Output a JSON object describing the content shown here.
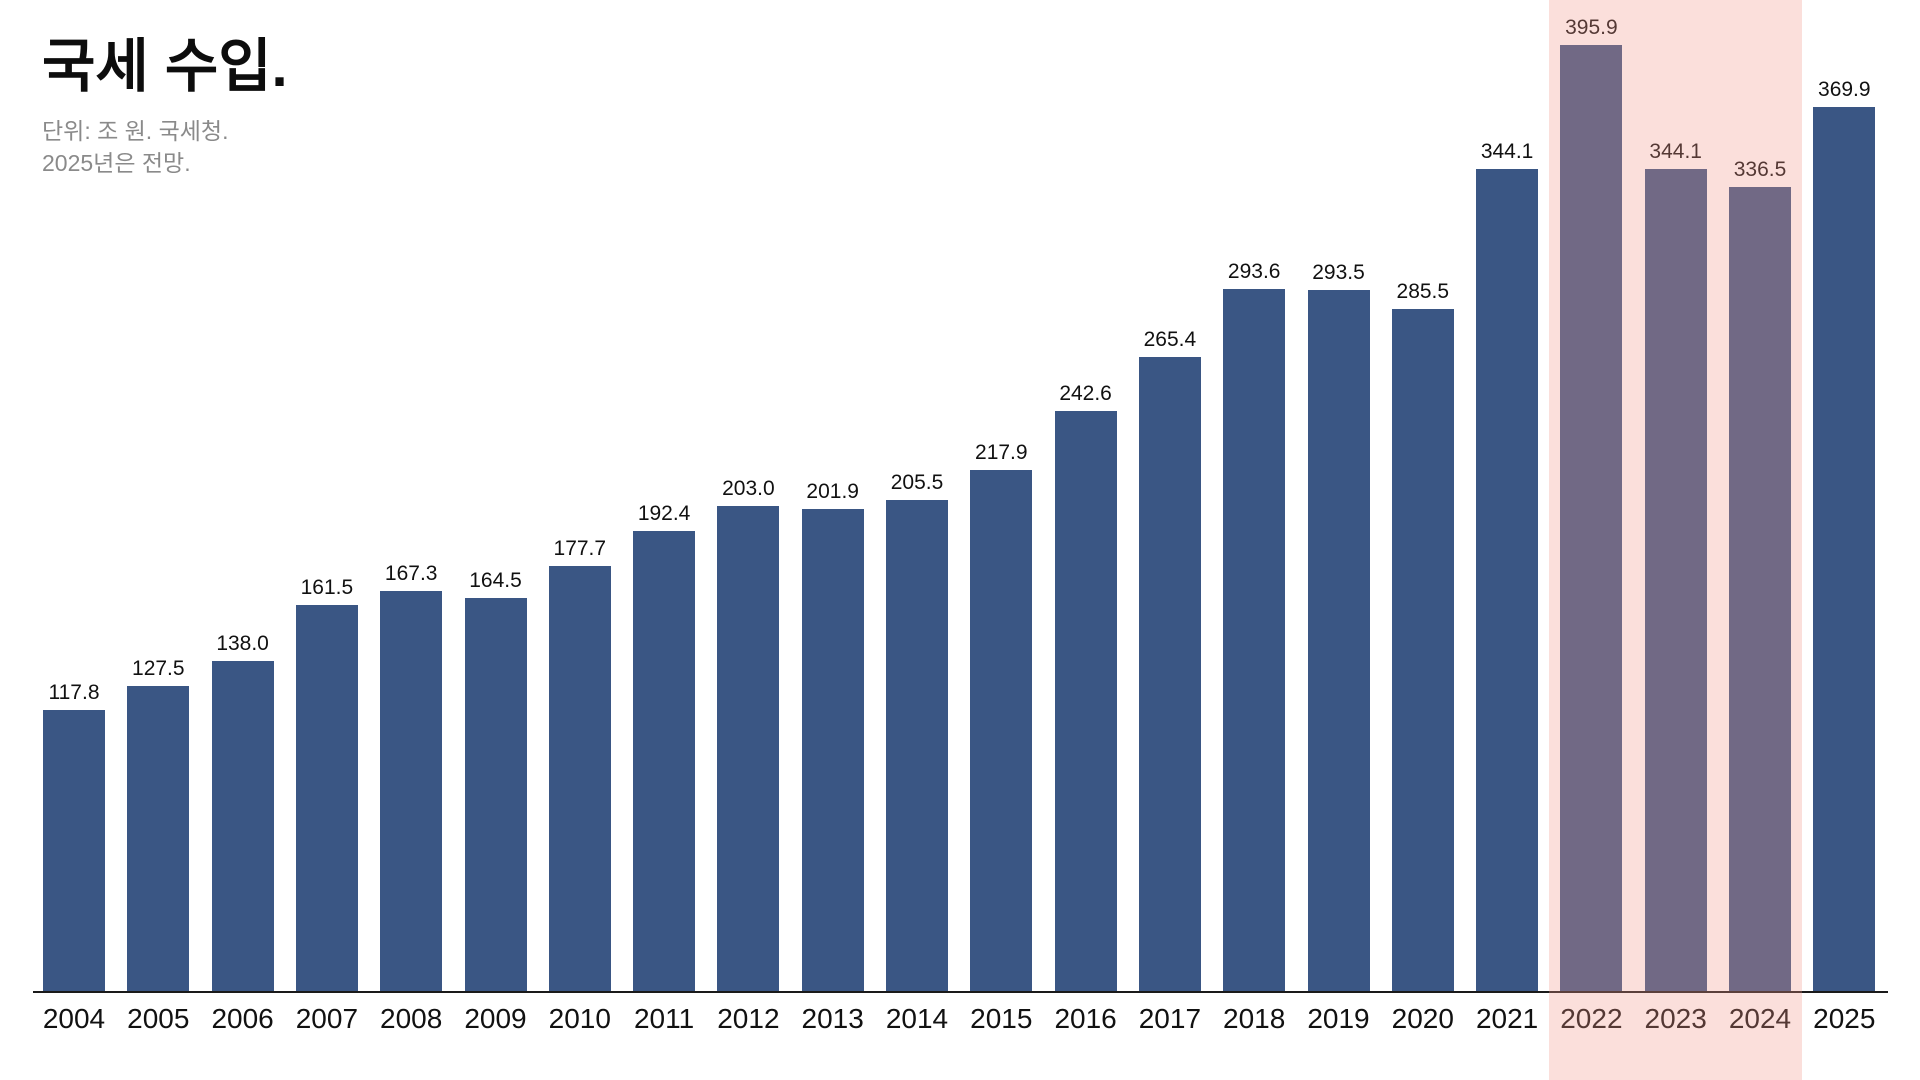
{
  "header": {
    "title": "국세 수입.",
    "subtitle_line1": "단위: 조 원. 국세청.",
    "subtitle_line2": "2025년은 전망."
  },
  "chart_data": {
    "type": "bar",
    "title": "국세 수입.",
    "unit_note": "단위: 조 원. 국세청.",
    "forecast_note": "2025년은 전망.",
    "categories": [
      "2004",
      "2005",
      "2006",
      "2007",
      "2008",
      "2009",
      "2010",
      "2011",
      "2012",
      "2013",
      "2014",
      "2015",
      "2016",
      "2017",
      "2018",
      "2019",
      "2020",
      "2021",
      "2022",
      "2023",
      "2024",
      "2025"
    ],
    "values": [
      117.8,
      127.5,
      138.0,
      161.5,
      167.3,
      164.5,
      177.7,
      192.4,
      203.0,
      201.9,
      205.5,
      217.9,
      242.6,
      265.4,
      293.6,
      293.5,
      285.5,
      344.1,
      395.9,
      344.1,
      336.5,
      369.9
    ],
    "value_labels": [
      "117.8",
      "127.5",
      "138.0",
      "161.5",
      "167.3",
      "164.5",
      "177.7",
      "192.4",
      "203.0",
      "201.9",
      "205.5",
      "217.9",
      "242.6",
      "265.4",
      "293.6",
      "293.5",
      "285.5",
      "344.1",
      "395.9",
      "344.1",
      "336.5",
      "369.9"
    ],
    "highlight_years": [
      "2022",
      "2023",
      "2024"
    ],
    "ylim": [
      0,
      400
    ],
    "grid": "off",
    "legend": "none",
    "colors": {
      "bar": "#3a5684",
      "highlight_overlay": "rgba(243,148,137,0.30)",
      "axis_line": "#1a1a1a",
      "label_text": "#111111",
      "subtitle_text": "#8a8a8a"
    }
  }
}
